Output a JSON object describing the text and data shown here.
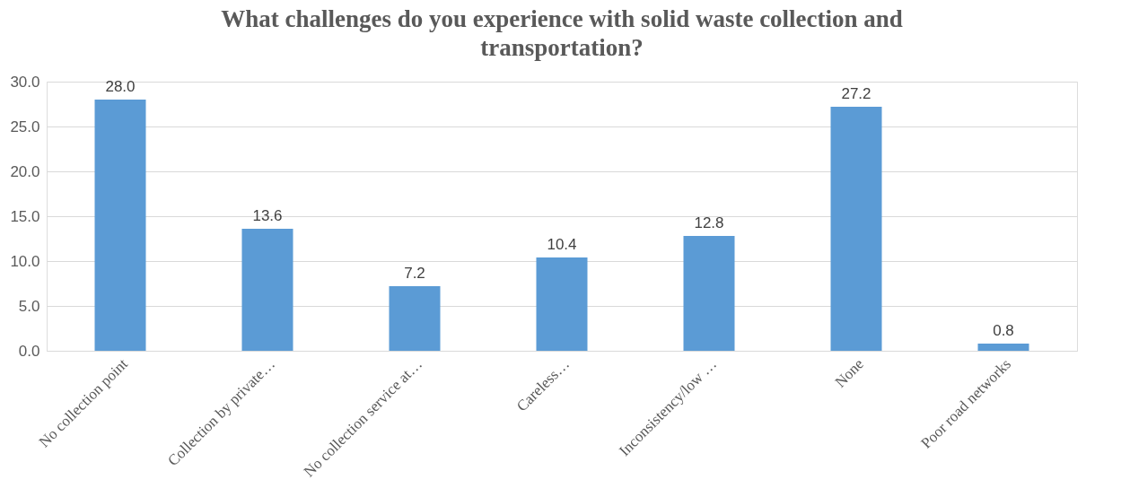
{
  "chart_data": {
    "type": "bar",
    "title": "What challenges do you experience with solid waste collection and transportation?",
    "categories": [
      "No collection point",
      "Collection by private…",
      "No collection service at…",
      "Careless…",
      "Inconsistency/low …",
      "None",
      "Poor road networks"
    ],
    "values": [
      28.0,
      13.6,
      7.2,
      10.4,
      12.8,
      27.2,
      0.8
    ],
    "value_labels": [
      "28.0",
      "13.6",
      "7.2",
      "10.4",
      "12.8",
      "27.2",
      "0.8"
    ],
    "color": "#5b9bd5",
    "ylim": [
      0,
      30
    ],
    "yticks": [
      {
        "value": 0,
        "label": "0.0"
      },
      {
        "value": 5,
        "label": "5.0"
      },
      {
        "value": 10,
        "label": "10.0"
      },
      {
        "value": 15,
        "label": "15.0"
      },
      {
        "value": 20,
        "label": "20.0"
      },
      {
        "value": 25,
        "label": "25.0"
      },
      {
        "value": 30,
        "label": "30.0"
      }
    ],
    "grid": "y"
  }
}
